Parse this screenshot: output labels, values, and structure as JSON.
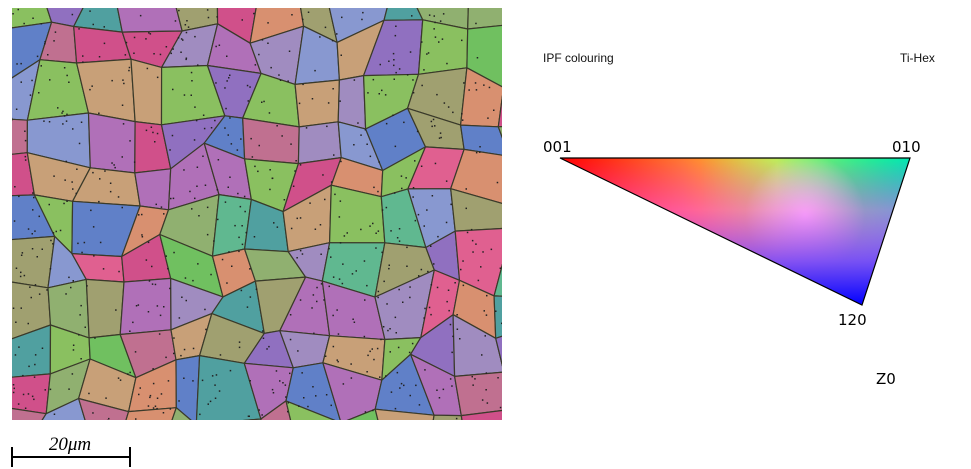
{
  "map": {
    "scale_bar": "20μm"
  },
  "legend": {
    "title": "IPF colouring",
    "phase": "Ti-Hex",
    "corners": [
      "001",
      "010",
      "120"
    ],
    "direction": "Z0"
  }
}
